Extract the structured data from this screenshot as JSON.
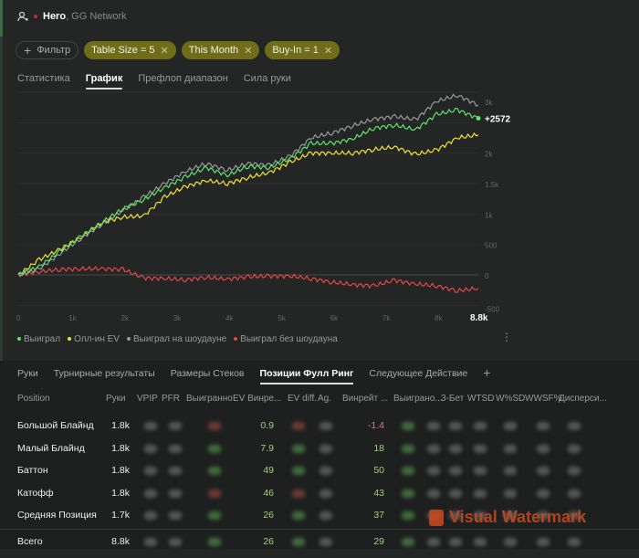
{
  "header": {
    "player": "Hero",
    "network": ", GG Network"
  },
  "filters": {
    "add_label": "Фильтр",
    "chips": [
      "Table Size = 5",
      "This Month",
      "Buy-In = 1"
    ]
  },
  "tabs": [
    "Статистика",
    "График",
    "Префлоп диапазон",
    "Сила руки"
  ],
  "active_tab": 1,
  "chart_data": {
    "type": "line",
    "x_ticks": [
      "0",
      "1k",
      "2k",
      "3k",
      "4k",
      "5k",
      "6k",
      "7k",
      "8k",
      "8.8k"
    ],
    "y_ticks": [
      "3k",
      "2k",
      "1.5k",
      "1k",
      "500",
      "0",
      "-500"
    ],
    "xlim": [
      0,
      8800
    ],
    "ylim": [
      -500,
      3000
    ],
    "grid": true,
    "legend": "bottom-left",
    "end_label": "+2572",
    "x": [
      0,
      400,
      800,
      1200,
      1600,
      2000,
      2400,
      2800,
      3200,
      3600,
      4000,
      4400,
      4800,
      5200,
      5600,
      6000,
      6400,
      6800,
      7200,
      7600,
      8000,
      8400,
      8800
    ],
    "series": [
      {
        "name": "Выиграл",
        "color": "#5fe36a",
        "values": [
          0,
          135,
          385,
          635,
          860,
          1085,
          1235,
          1435,
          1610,
          1760,
          1635,
          1785,
          1760,
          1910,
          2160,
          2160,
          2235,
          2410,
          2460,
          2385,
          2635,
          2710,
          2572
        ]
      },
      {
        "name": "Олл-ин EV",
        "color": "#f0e23a",
        "values": [
          0,
          250,
          420,
          620,
          860,
          950,
          970,
          1280,
          1450,
          1550,
          1500,
          1600,
          1680,
          1850,
          2000,
          2000,
          2000,
          2060,
          2100,
          1980,
          2050,
          2250,
          2300
        ]
      },
      {
        "name": "Выиграл на шоудауне",
        "color": "#9a9a9a",
        "values": [
          0,
          100,
          350,
          600,
          830,
          1060,
          1280,
          1500,
          1700,
          1830,
          1720,
          1830,
          1800,
          1950,
          2250,
          2330,
          2450,
          2560,
          2600,
          2550,
          2850,
          2950,
          2790
        ]
      },
      {
        "name": "Выиграл без шоудауна",
        "color": "#e34848",
        "values": [
          0,
          50,
          90,
          100,
          100,
          90,
          -50,
          -60,
          -80,
          -40,
          -70,
          -30,
          -20,
          -20,
          -60,
          -120,
          -160,
          -180,
          -90,
          -150,
          -180,
          -260,
          -220
        ]
      }
    ]
  },
  "bottom_tabs": [
    "Руки",
    "Турнирные результаты",
    "Размеры Стеков",
    "Позиции Фулл Ринг",
    "Следующее Действие"
  ],
  "bottom_active": 3,
  "add_tab": "+",
  "table": {
    "columns": [
      "Position",
      "Руки",
      "VPIP",
      "PFR",
      "Выигранно",
      "EV Винре...",
      "EV diff.",
      "Ag.",
      "Винрейт ...",
      "Выиграно...",
      "3-Бет",
      "WTSD",
      "W%SD",
      "WWSF%",
      "Дисперси..."
    ],
    "rows": [
      {
        "position": "Большой Блайнд",
        "hands": "1.8k",
        "ev_winrate": "0.9",
        "winrate": "-1.4"
      },
      {
        "position": "Малый Блайнд",
        "hands": "1.8k",
        "ev_winrate": "7.9",
        "winrate": "18"
      },
      {
        "position": "Баттон",
        "hands": "1.8k",
        "ev_winrate": "49",
        "winrate": "50"
      },
      {
        "position": "Катофф",
        "hands": "1.8k",
        "ev_winrate": "46",
        "winrate": "43"
      },
      {
        "position": "Средняя Позиция",
        "hands": "1.7k",
        "ev_winrate": "26",
        "winrate": "37"
      }
    ],
    "total": {
      "position": "Всего",
      "hands": "8.8k",
      "ev_winrate": "26",
      "winrate": "29"
    }
  },
  "watermark": "Visual Watermark"
}
